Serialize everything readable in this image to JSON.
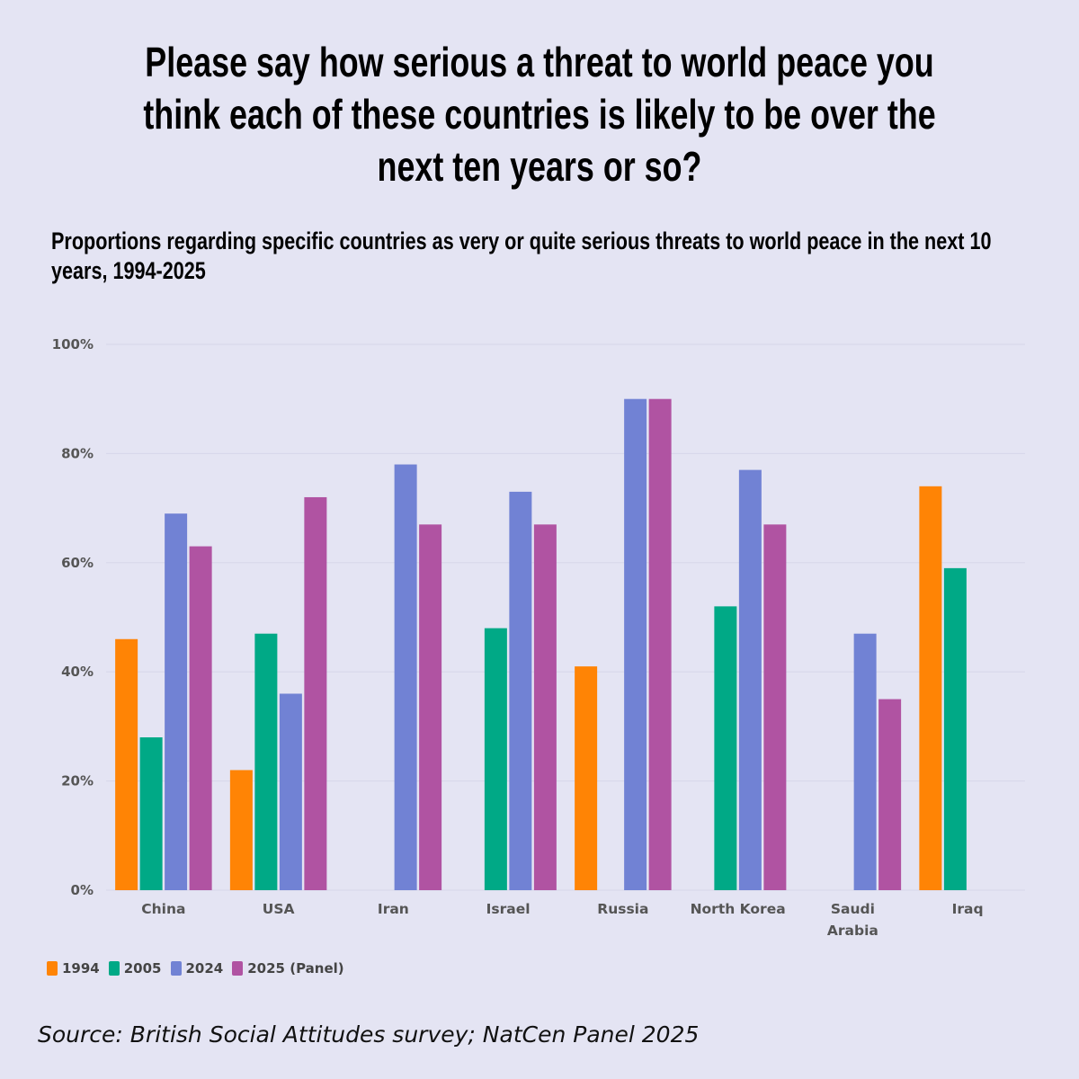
{
  "chart_data": {
    "type": "bar",
    "title": "Please say how serious a threat to world peace you think each of these countries is likely to be over the next ten years or so?",
    "subtitle": "Proportions regarding specific countries as very or quite serious threats to world peace in the next 10 years, 1994-2025",
    "categories": [
      "China",
      "USA",
      "Iran",
      "Israel",
      "Russia",
      "North Korea",
      "Saudi Arabia",
      "Iraq"
    ],
    "category_lines": [
      [
        "China"
      ],
      [
        "USA"
      ],
      [
        "Iran"
      ],
      [
        "Israel"
      ],
      [
        "Russia"
      ],
      [
        "North Korea"
      ],
      [
        "Saudi",
        "Arabia"
      ],
      [
        "Iraq"
      ]
    ],
    "series": [
      {
        "name": "1994",
        "color": "#ff8405",
        "values": [
          46,
          22,
          null,
          null,
          41,
          null,
          null,
          74
        ]
      },
      {
        "name": "2005",
        "color": "#00a986",
        "values": [
          28,
          47,
          null,
          48,
          null,
          52,
          null,
          59
        ]
      },
      {
        "name": "2024",
        "color": "#7182d4",
        "values": [
          69,
          36,
          78,
          73,
          90,
          77,
          47,
          null
        ]
      },
      {
        "name": "2025 (Panel)",
        "color": "#b053a2",
        "values": [
          63,
          72,
          67,
          67,
          90,
          67,
          35,
          null
        ]
      }
    ],
    "ylim": [
      0,
      100
    ],
    "yticks": [
      0,
      20,
      40,
      60,
      80,
      100
    ],
    "ytick_labels": [
      "0%",
      "20%",
      "40%",
      "60%",
      "80%",
      "100%"
    ],
    "xlabel": "",
    "ylabel": "",
    "grid": true,
    "legend_position": "bottom-left"
  },
  "source": "Source: British Social Attitudes survey; NatCen Panel 2025"
}
